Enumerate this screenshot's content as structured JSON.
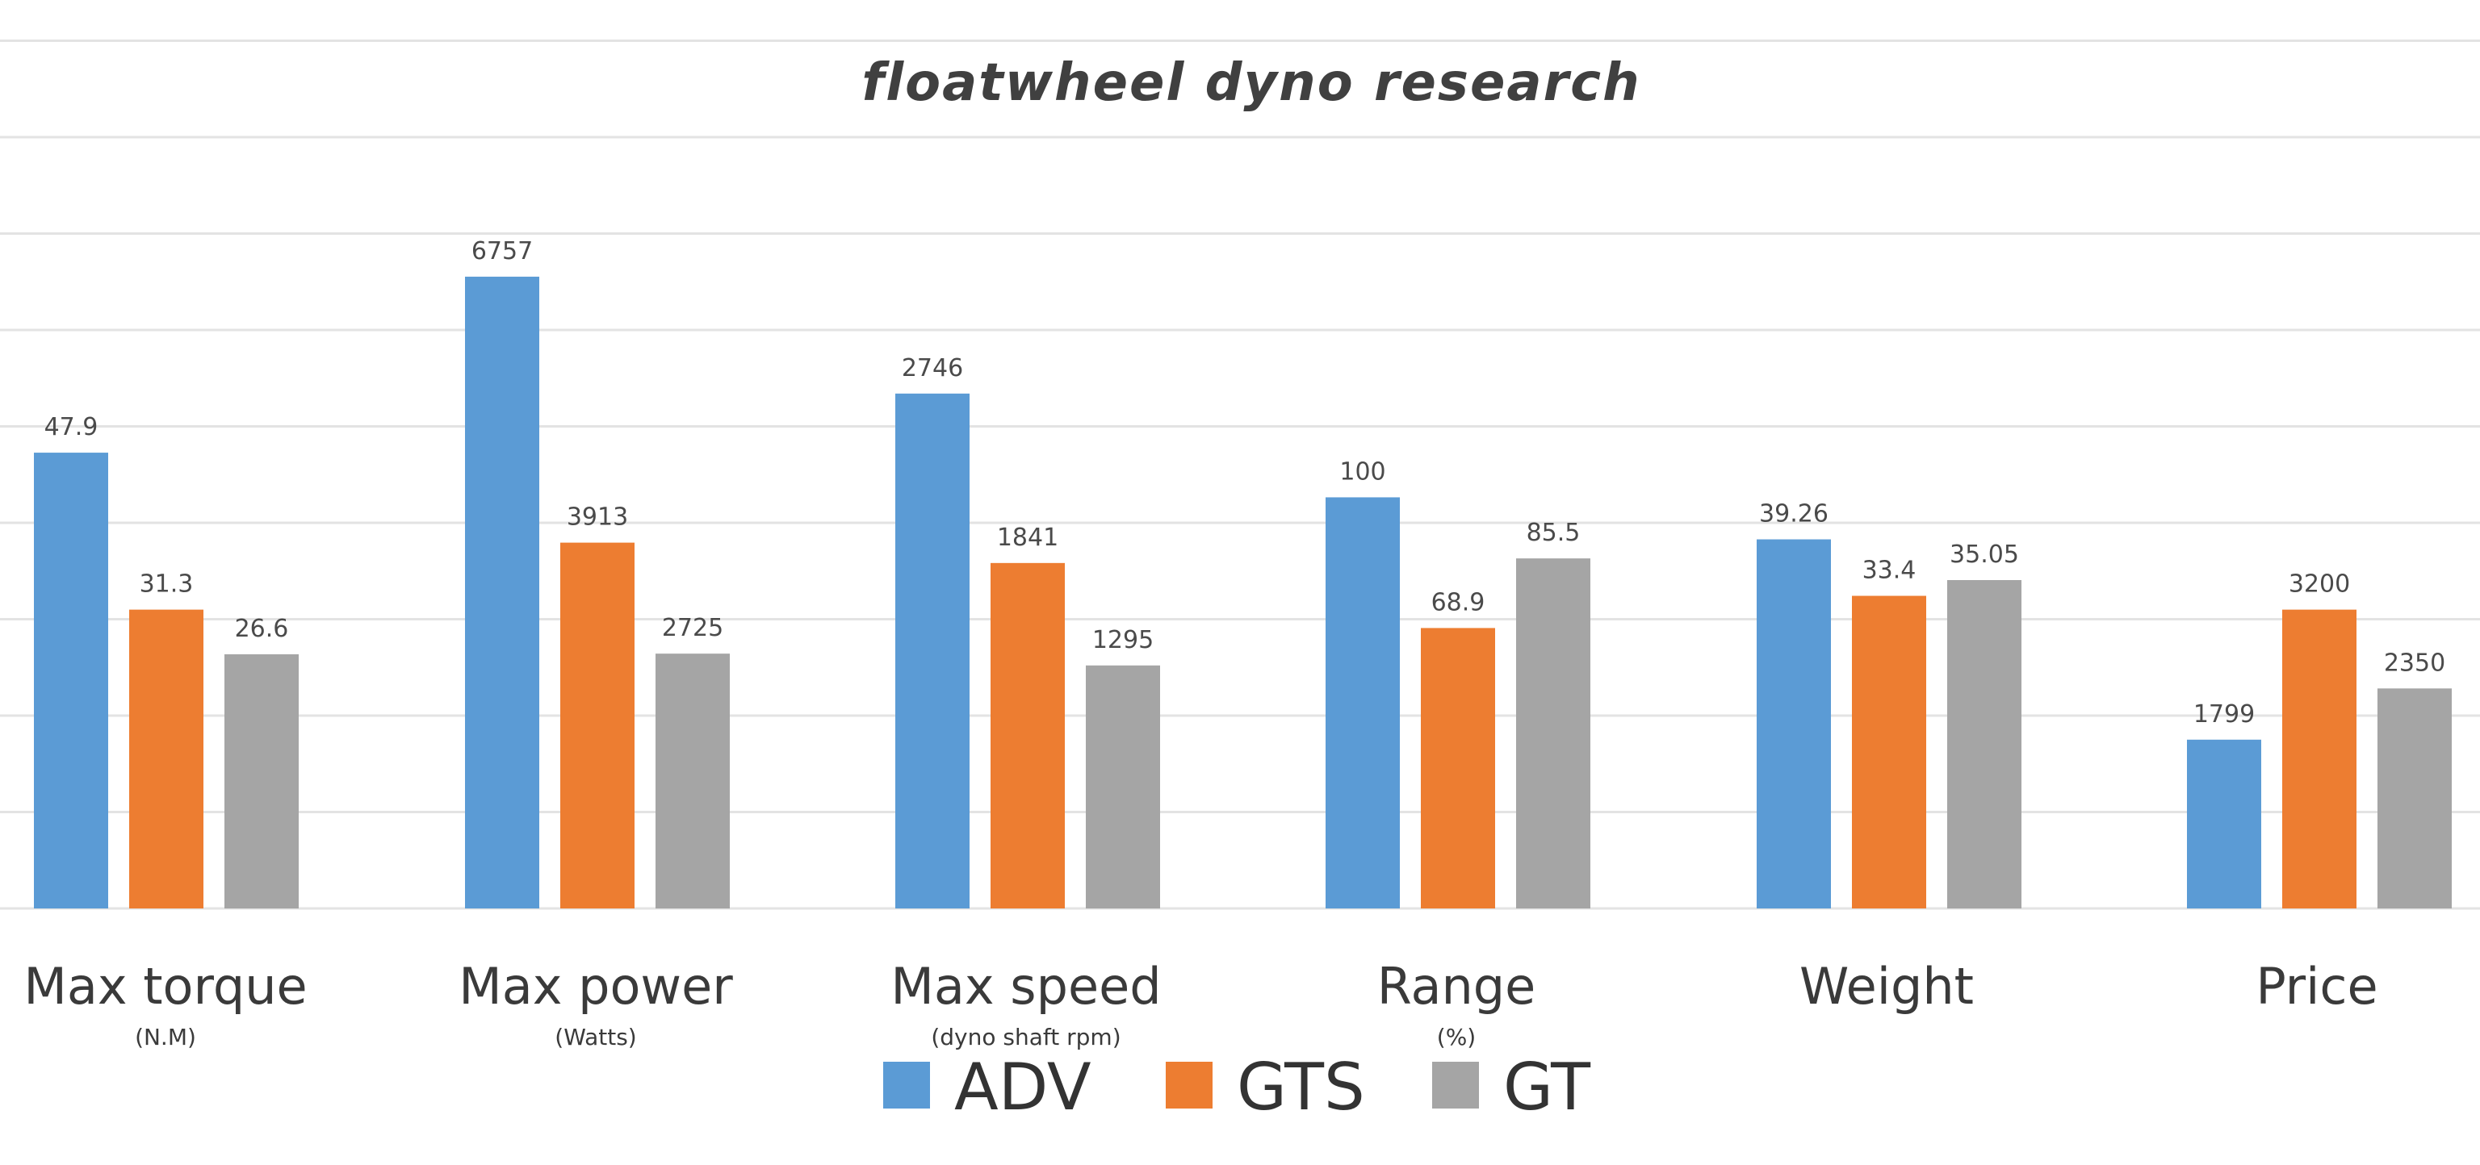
{
  "chart_data": {
    "type": "bar",
    "title": "floatwheel dyno research",
    "categories": [
      "Max torque",
      "Max power",
      "Max speed",
      "Range",
      "Weight",
      "Price"
    ],
    "category_units": [
      "(N.M)",
      "(Watts)",
      "(dyno shaft rpm)",
      "(%)",
      "",
      ""
    ],
    "series": [
      {
        "name": "ADV",
        "color": "#5b9bd5",
        "values": [
          47.9,
          6757,
          2746,
          100,
          39.26,
          1799
        ]
      },
      {
        "name": "GTS",
        "color": "#ed7d31",
        "values": [
          31.3,
          3913,
          1841,
          68.9,
          33.4,
          3200
        ]
      },
      {
        "name": "GT",
        "color": "#a5a5a5",
        "values": [
          26.6,
          2725,
          1295,
          85.5,
          35.05,
          2350
        ]
      }
    ],
    "value_labels": [
      [
        "47.9",
        "6757",
        "2746",
        "100",
        "39.26",
        "1799"
      ],
      [
        "31.3",
        "3913",
        "1841",
        "68.9",
        "33.4",
        "3200"
      ],
      [
        "26.6",
        "2725",
        "1295",
        "85.5",
        "35.05",
        "2350"
      ]
    ],
    "bar_fill_fraction": [
      [
        0.694,
        0.962,
        0.784,
        0.626,
        0.562,
        0.257
      ],
      [
        0.455,
        0.557,
        0.526,
        0.427,
        0.476,
        0.455
      ],
      [
        0.387,
        0.388,
        0.37,
        0.533,
        0.5,
        0.335
      ]
    ],
    "grid": true,
    "legend_position": "bottom-center"
  }
}
